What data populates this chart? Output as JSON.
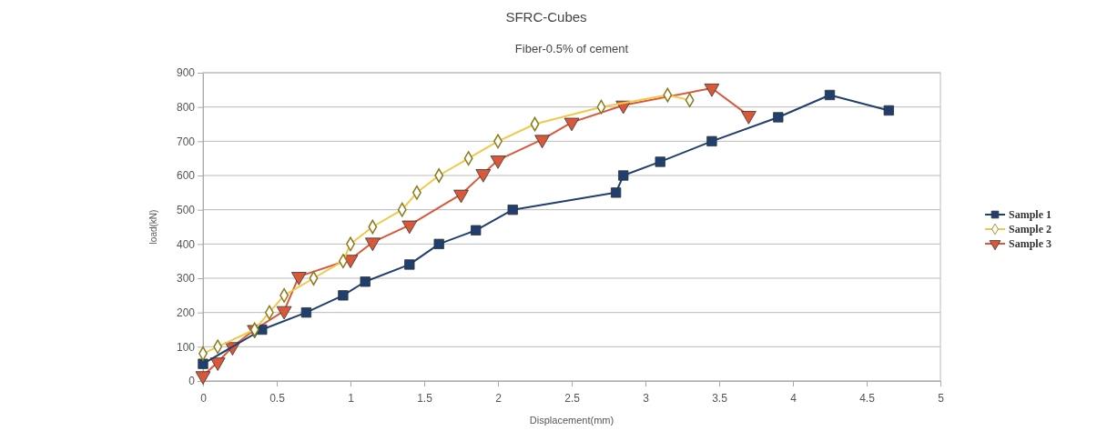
{
  "chart_data": {
    "type": "line",
    "title": "SFRC-Cubes",
    "subtitle": "Fiber-0.5% of cement",
    "xlabel": "Displacement(mm)",
    "ylabel": "load(kN)",
    "xlim": [
      0,
      5
    ],
    "xticks": [
      0,
      0.5,
      1,
      1.5,
      2,
      2.5,
      3,
      3.5,
      4,
      4.5,
      5
    ],
    "ylim": [
      0,
      900
    ],
    "yticks": [
      0,
      100,
      200,
      300,
      400,
      500,
      600,
      700,
      800,
      900
    ],
    "grid": "y",
    "legend": "right",
    "series": [
      {
        "name": "Sample 1",
        "color": "#1f3f6e",
        "marker": "square",
        "x": [
          0,
          0.4,
          0.7,
          0.95,
          1.1,
          1.4,
          1.6,
          1.85,
          2.1,
          2.8,
          2.85,
          3.1,
          3.45,
          3.9,
          4.25,
          4.65
        ],
        "values": [
          50,
          150,
          200,
          250,
          290,
          340,
          400,
          440,
          500,
          550,
          600,
          640,
          700,
          770,
          835,
          790
        ]
      },
      {
        "name": "Sample 2",
        "color": "#f2c84b",
        "marker": "diamond",
        "x": [
          0,
          0.1,
          0.35,
          0.45,
          0.55,
          0.75,
          0.95,
          1.0,
          1.15,
          1.35,
          1.45,
          1.6,
          1.8,
          2.0,
          2.25,
          2.7,
          3.15,
          3.3
        ],
        "values": [
          80,
          100,
          150,
          200,
          250,
          300,
          350,
          400,
          450,
          500,
          550,
          600,
          650,
          700,
          750,
          800,
          835,
          820
        ]
      },
      {
        "name": "Sample 3",
        "color": "#d9583a",
        "marker": "triangle",
        "x": [
          0,
          0.1,
          0.2,
          0.35,
          0.55,
          0.65,
          1.0,
          1.15,
          1.4,
          1.75,
          1.9,
          2.0,
          2.3,
          2.5,
          2.85,
          3.45,
          3.7
        ],
        "values": [
          15,
          55,
          100,
          150,
          205,
          305,
          355,
          405,
          455,
          545,
          605,
          645,
          705,
          755,
          805,
          855,
          775
        ]
      }
    ]
  }
}
